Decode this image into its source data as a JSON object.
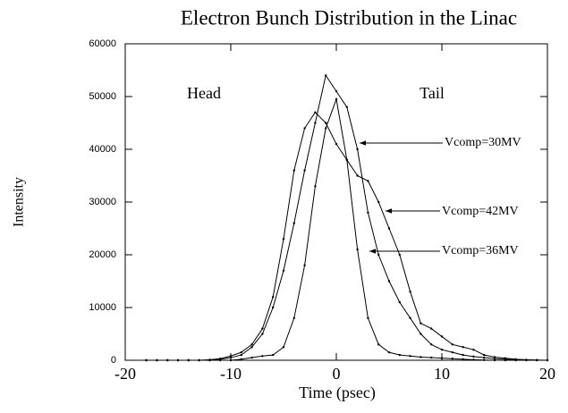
{
  "chart_data": {
    "type": "line",
    "title": "Electron Bunch Distribution in the Linac",
    "xlabel": "Time (psec)",
    "ylabel": "Intensity",
    "annotations": [
      "Head",
      "Tail"
    ],
    "x": [
      -18,
      -17,
      -16,
      -15,
      -14,
      -13,
      -12,
      -11,
      -10,
      -9,
      -8,
      -7,
      -6,
      -5,
      -4,
      -3,
      -2,
      -1,
      0,
      1,
      2,
      3,
      4,
      5,
      6,
      7,
      8,
      9,
      10,
      11,
      12,
      13,
      14,
      15,
      16,
      17,
      18,
      19,
      20
    ],
    "series": [
      {
        "name": "Vcomp=30MV",
        "color": "#000000",
        "values": [
          0,
          0,
          0,
          0,
          0,
          0,
          0,
          200,
          500,
          1000,
          2500,
          5000,
          10000,
          17000,
          26000,
          36000,
          45000,
          54000,
          51000,
          48000,
          40000,
          28000,
          20000,
          15000,
          11000,
          8000,
          5000,
          3000,
          2000,
          1500,
          1000,
          700,
          500,
          300,
          200,
          100,
          50,
          0,
          0
        ]
      },
      {
        "name": "Vcomp=42MV",
        "color": "#000000",
        "values": [
          0,
          0,
          0,
          0,
          0,
          0,
          100,
          300,
          800,
          1500,
          3000,
          6000,
          12000,
          23000,
          36000,
          44000,
          47000,
          45000,
          41000,
          38000,
          35000,
          34000,
          30000,
          25000,
          20000,
          13000,
          7000,
          6000,
          4500,
          3000,
          2500,
          2000,
          1000,
          600,
          400,
          200,
          100,
          50,
          0
        ]
      },
      {
        "name": "Vcomp=36MV",
        "color": "#000000",
        "values": [
          0,
          0,
          0,
          0,
          0,
          0,
          0,
          0,
          0,
          200,
          500,
          800,
          1000,
          2500,
          8000,
          18000,
          33000,
          44000,
          49500,
          38000,
          21000,
          8000,
          3000,
          1500,
          1000,
          800,
          600,
          500,
          400,
          300,
          200,
          100,
          50,
          0,
          0,
          0,
          0,
          0,
          0
        ]
      }
    ],
    "xlim": [
      -20,
      20
    ],
    "ylim": [
      0,
      60000
    ],
    "xticks": [
      -20,
      -10,
      0,
      10,
      20
    ],
    "yticks": [
      0,
      10000,
      20000,
      30000,
      40000,
      50000,
      60000
    ]
  }
}
